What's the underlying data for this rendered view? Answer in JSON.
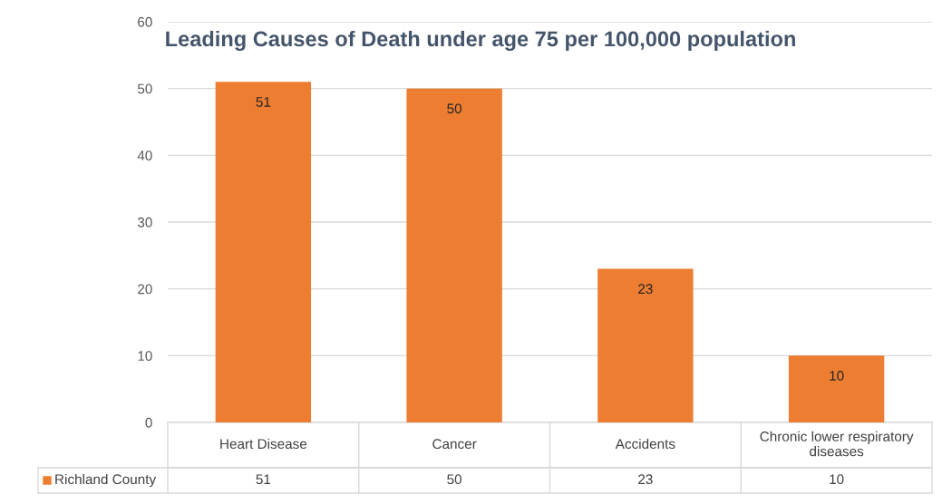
{
  "chart_data": {
    "type": "bar",
    "title": "Leading Causes of Death under age 75 per 100,000 population",
    "categories": [
      "Heart Disease",
      "Cancer",
      "Accidents",
      "Chronic lower respiratory diseases"
    ],
    "series": [
      {
        "name": "Richland County",
        "color": "#ed7d31",
        "values": [
          51,
          50,
          23,
          10
        ],
        "value_labels": [
          "51",
          "50",
          "23",
          "10"
        ]
      }
    ],
    "annotations": [
      "51",
      "50",
      "23",
      "10"
    ],
    "ylim": [
      0,
      60
    ],
    "yticks": [
      0,
      10,
      20,
      30,
      40,
      50,
      60
    ],
    "grid": "y",
    "data_labels": true,
    "legend": "bottom",
    "tick_labels": "y"
  }
}
